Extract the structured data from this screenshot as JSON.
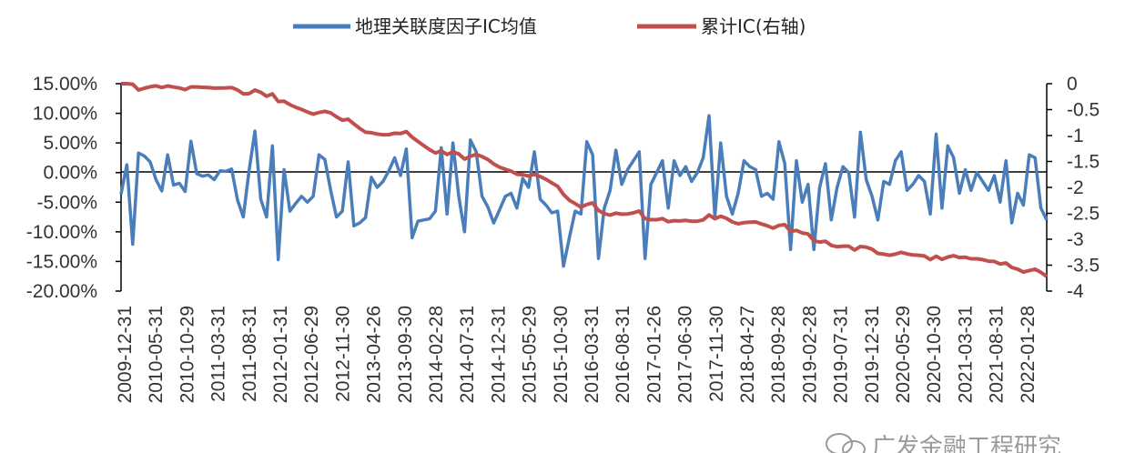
{
  "chart_data": {
    "type": "line",
    "title": "",
    "xlabel": "",
    "ylabel_left": "",
    "ylabel_right": "",
    "legend_position": "top-center",
    "grid": false,
    "ylim_left": [
      -0.2,
      0.15
    ],
    "ylim_right": [
      -4,
      0
    ],
    "y_left_ticks": [
      "15.00%",
      "10.00%",
      "5.00%",
      "0.00%",
      "-5.00%",
      "-10.00%",
      "-15.00%",
      "-20.00%"
    ],
    "y_right_ticks": [
      "0",
      "-0.5",
      "-1",
      "-1.5",
      "-2",
      "-2.5",
      "-3",
      "-3.5",
      "-4"
    ],
    "x_tick_labels": [
      "2009-12-31",
      "2010-05-31",
      "2010-10-29",
      "2011-03-31",
      "2011-08-31",
      "2012-01-31",
      "2012-06-29",
      "2012-11-30",
      "2013-04-26",
      "2013-09-30",
      "2014-02-28",
      "2014-07-31",
      "2014-12-31",
      "2015-05-29",
      "2015-10-30",
      "2016-03-31",
      "2016-08-31",
      "2017-01-26",
      "2017-06-30",
      "2017-11-30",
      "2018-04-27",
      "2018-09-28",
      "2019-02-28",
      "2019-07-31",
      "2019-12-31",
      "2020-05-29",
      "2020-10-30",
      "2021-03-31",
      "2021-08-31",
      "2022-01-28"
    ],
    "colors": {
      "monthly_ic": "#4a7ebb",
      "cumulative_ic": "#c0504d",
      "axis": "#000000"
    },
    "series": [
      {
        "name": "地理关联度因子IC均值",
        "axis": "left",
        "values": [
          -0.036,
          0.013,
          -0.121,
          0.033,
          0.028,
          0.018,
          -0.012,
          -0.031,
          0.03,
          -0.021,
          -0.018,
          -0.032,
          0.053,
          -0.002,
          -0.006,
          -0.004,
          -0.012,
          0.003,
          0.002,
          0.006,
          -0.046,
          -0.075,
          0.004,
          0.07,
          -0.045,
          -0.075,
          0.045,
          -0.147,
          0.005,
          -0.065,
          -0.052,
          -0.04,
          -0.05,
          -0.04,
          0.03,
          0.022,
          -0.03,
          -0.075,
          -0.065,
          0.018,
          -0.09,
          -0.085,
          -0.076,
          -0.008,
          -0.025,
          -0.015,
          0.003,
          0.025,
          -0.005,
          0.04,
          -0.11,
          -0.082,
          -0.08,
          -0.078,
          -0.065,
          0.042,
          -0.07,
          0.05,
          -0.04,
          -0.1,
          0.055,
          0.035,
          -0.04,
          -0.058,
          -0.085,
          -0.063,
          -0.04,
          -0.035,
          -0.06,
          -0.01,
          -0.025,
          0.035,
          -0.045,
          -0.055,
          -0.068,
          -0.065,
          -0.158,
          -0.11,
          -0.065,
          -0.07,
          0.052,
          0.03,
          -0.145,
          -0.06,
          -0.03,
          0.038,
          -0.02,
          0.005,
          0.02,
          0.035,
          -0.145,
          -0.02,
          0.0,
          0.02,
          -0.06,
          0.02,
          -0.005,
          0.01,
          -0.015,
          0.0,
          0.025,
          0.096,
          -0.075,
          0.05,
          -0.04,
          -0.07,
          -0.035,
          0.02,
          0.01,
          0.005,
          -0.04,
          -0.035,
          -0.045,
          0.052,
          0.015,
          -0.13,
          0.02,
          -0.05,
          -0.02,
          -0.13,
          -0.025,
          0.015,
          -0.08,
          -0.025,
          0.01,
          0.0,
          -0.075,
          0.068,
          -0.012,
          -0.04,
          -0.08,
          -0.015,
          -0.02,
          0.02,
          0.035,
          -0.03,
          -0.02,
          -0.005,
          -0.015,
          -0.07,
          0.065,
          -0.06,
          0.045,
          0.025,
          -0.035,
          0.005,
          -0.03,
          0.0,
          -0.015,
          -0.03,
          -0.005,
          -0.05,
          0.02,
          -0.085,
          -0.035,
          -0.055,
          0.03,
          0.025,
          -0.06,
          -0.08
        ]
      },
      {
        "name": "累计IC(右轴)",
        "axis": "right",
        "values": [
          0.0,
          0.0,
          -0.01,
          -0.121,
          -0.088,
          -0.06,
          -0.042,
          -0.073,
          -0.044,
          -0.065,
          -0.083,
          -0.115,
          -0.062,
          -0.064,
          -0.07,
          -0.074,
          -0.086,
          -0.083,
          -0.081,
          -0.075,
          -0.121,
          -0.196,
          -0.192,
          -0.122,
          -0.167,
          -0.242,
          -0.197,
          -0.344,
          -0.339,
          -0.404,
          -0.456,
          -0.496,
          -0.546,
          -0.586,
          -0.556,
          -0.534,
          -0.564,
          -0.639,
          -0.704,
          -0.686,
          -0.776,
          -0.861,
          -0.937,
          -0.945,
          -0.97,
          -0.985,
          -0.982,
          -0.957,
          -0.962,
          -0.922,
          -1.032,
          -1.114,
          -1.194,
          -1.272,
          -1.337,
          -1.295,
          -1.365,
          -1.315,
          -1.355,
          -1.455,
          -1.4,
          -1.365,
          -1.405,
          -1.463,
          -1.548,
          -1.611,
          -1.651,
          -1.686,
          -1.746,
          -1.756,
          -1.781,
          -1.746,
          -1.791,
          -1.846,
          -1.914,
          -1.979,
          -2.137,
          -2.247,
          -2.312,
          -2.382,
          -2.33,
          -2.3,
          -2.445,
          -2.505,
          -2.535,
          -2.497,
          -2.517,
          -2.512,
          -2.492,
          -2.457,
          -2.602,
          -2.622,
          -2.622,
          -2.602,
          -2.662,
          -2.642,
          -2.647,
          -2.637,
          -2.652,
          -2.652,
          -2.627,
          -2.531,
          -2.606,
          -2.556,
          -2.596,
          -2.666,
          -2.701,
          -2.681,
          -2.671,
          -2.666,
          -2.706,
          -2.741,
          -2.786,
          -2.734,
          -2.719,
          -2.849,
          -2.829,
          -2.879,
          -2.899,
          -3.029,
          -3.054,
          -3.039,
          -3.119,
          -3.144,
          -3.134,
          -3.134,
          -3.209,
          -3.141,
          -3.153,
          -3.193,
          -3.273,
          -3.288,
          -3.308,
          -3.288,
          -3.253,
          -3.283,
          -3.303,
          -3.308,
          -3.323,
          -3.393,
          -3.328,
          -3.388,
          -3.343,
          -3.318,
          -3.353,
          -3.348,
          -3.378,
          -3.378,
          -3.393,
          -3.423,
          -3.428,
          -3.478,
          -3.458,
          -3.543,
          -3.578,
          -3.633,
          -3.603,
          -3.578,
          -3.638,
          -3.718
        ]
      }
    ]
  },
  "watermark": {
    "text": "广发金融工程研究",
    "icon": "wechat-icon"
  }
}
